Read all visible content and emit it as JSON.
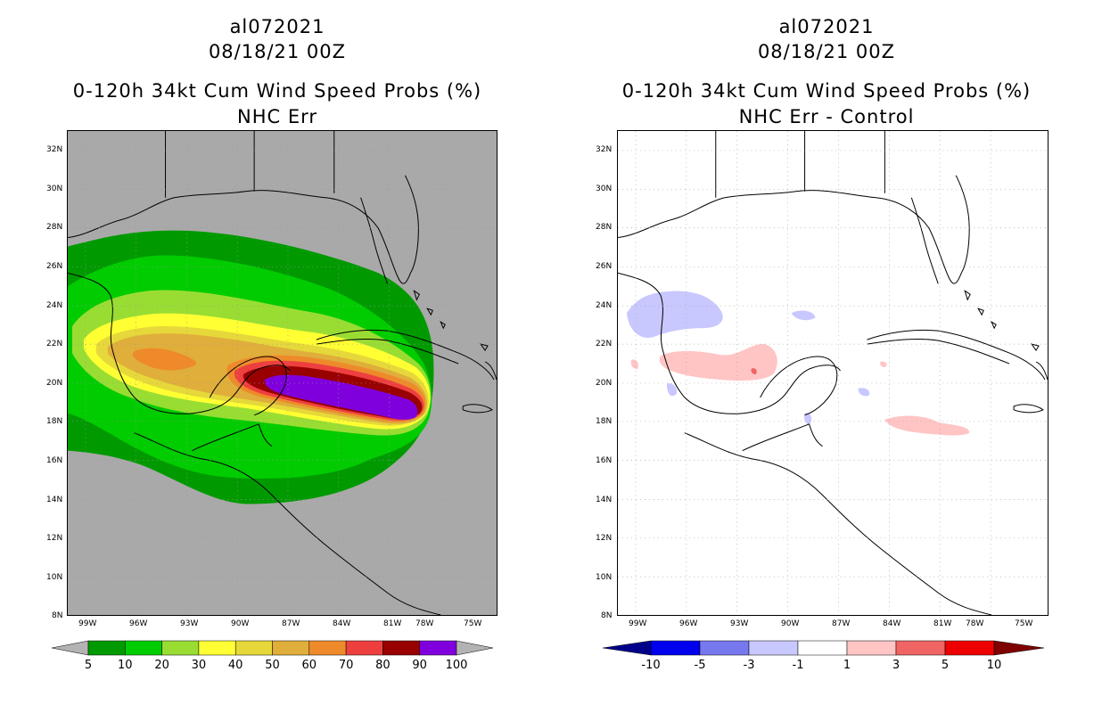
{
  "left": {
    "storm_id": "al072021",
    "datetime": "08/18/21 00Z",
    "product": "0-120h 34kt Cum Wind Speed Probs (%)",
    "subtitle": "NHC Err",
    "colorbar": {
      "labels": [
        "5",
        "10",
        "20",
        "30",
        "40",
        "50",
        "60",
        "70",
        "80",
        "90",
        "100"
      ],
      "colors": [
        "#009a00",
        "#00cc00",
        "#99dd33",
        "#ffff33",
        "#e6d83a",
        "#e0ae3a",
        "#ee8a2a",
        "#ee3f3f",
        "#990000",
        "#7f00dd"
      ],
      "over_color": "#b3b3b3",
      "under_color": "#b3b3b3"
    }
  },
  "right": {
    "storm_id": "al072021",
    "datetime": "08/18/21 00Z",
    "product": "0-120h 34kt Cum Wind Speed Probs (%)",
    "subtitle": "NHC Err - Control",
    "colorbar": {
      "labels": [
        "-10",
        "-5",
        "-3",
        "-1",
        "1",
        "3",
        "5",
        "10"
      ],
      "colors": [
        "#0000ee",
        "#7777ee",
        "#c8c8ff",
        "#ffffff",
        "#ffc4c4",
        "#f06464",
        "#ee0000"
      ],
      "under_color": "#00008b",
      "over_color": "#7f0000"
    }
  },
  "axes": {
    "lat_labels": [
      "32N",
      "30N",
      "28N",
      "26N",
      "24N",
      "22N",
      "20N",
      "18N",
      "16N",
      "14N",
      "12N",
      "10N",
      "8N"
    ],
    "lon_labels": [
      "99W",
      "96W",
      "93W",
      "90W",
      "87W",
      "84W",
      "81W",
      "78W",
      "75W"
    ]
  },
  "colors": {
    "land_background": "#a9a9a9",
    "coastline": "#000000",
    "grid": "#999999"
  }
}
